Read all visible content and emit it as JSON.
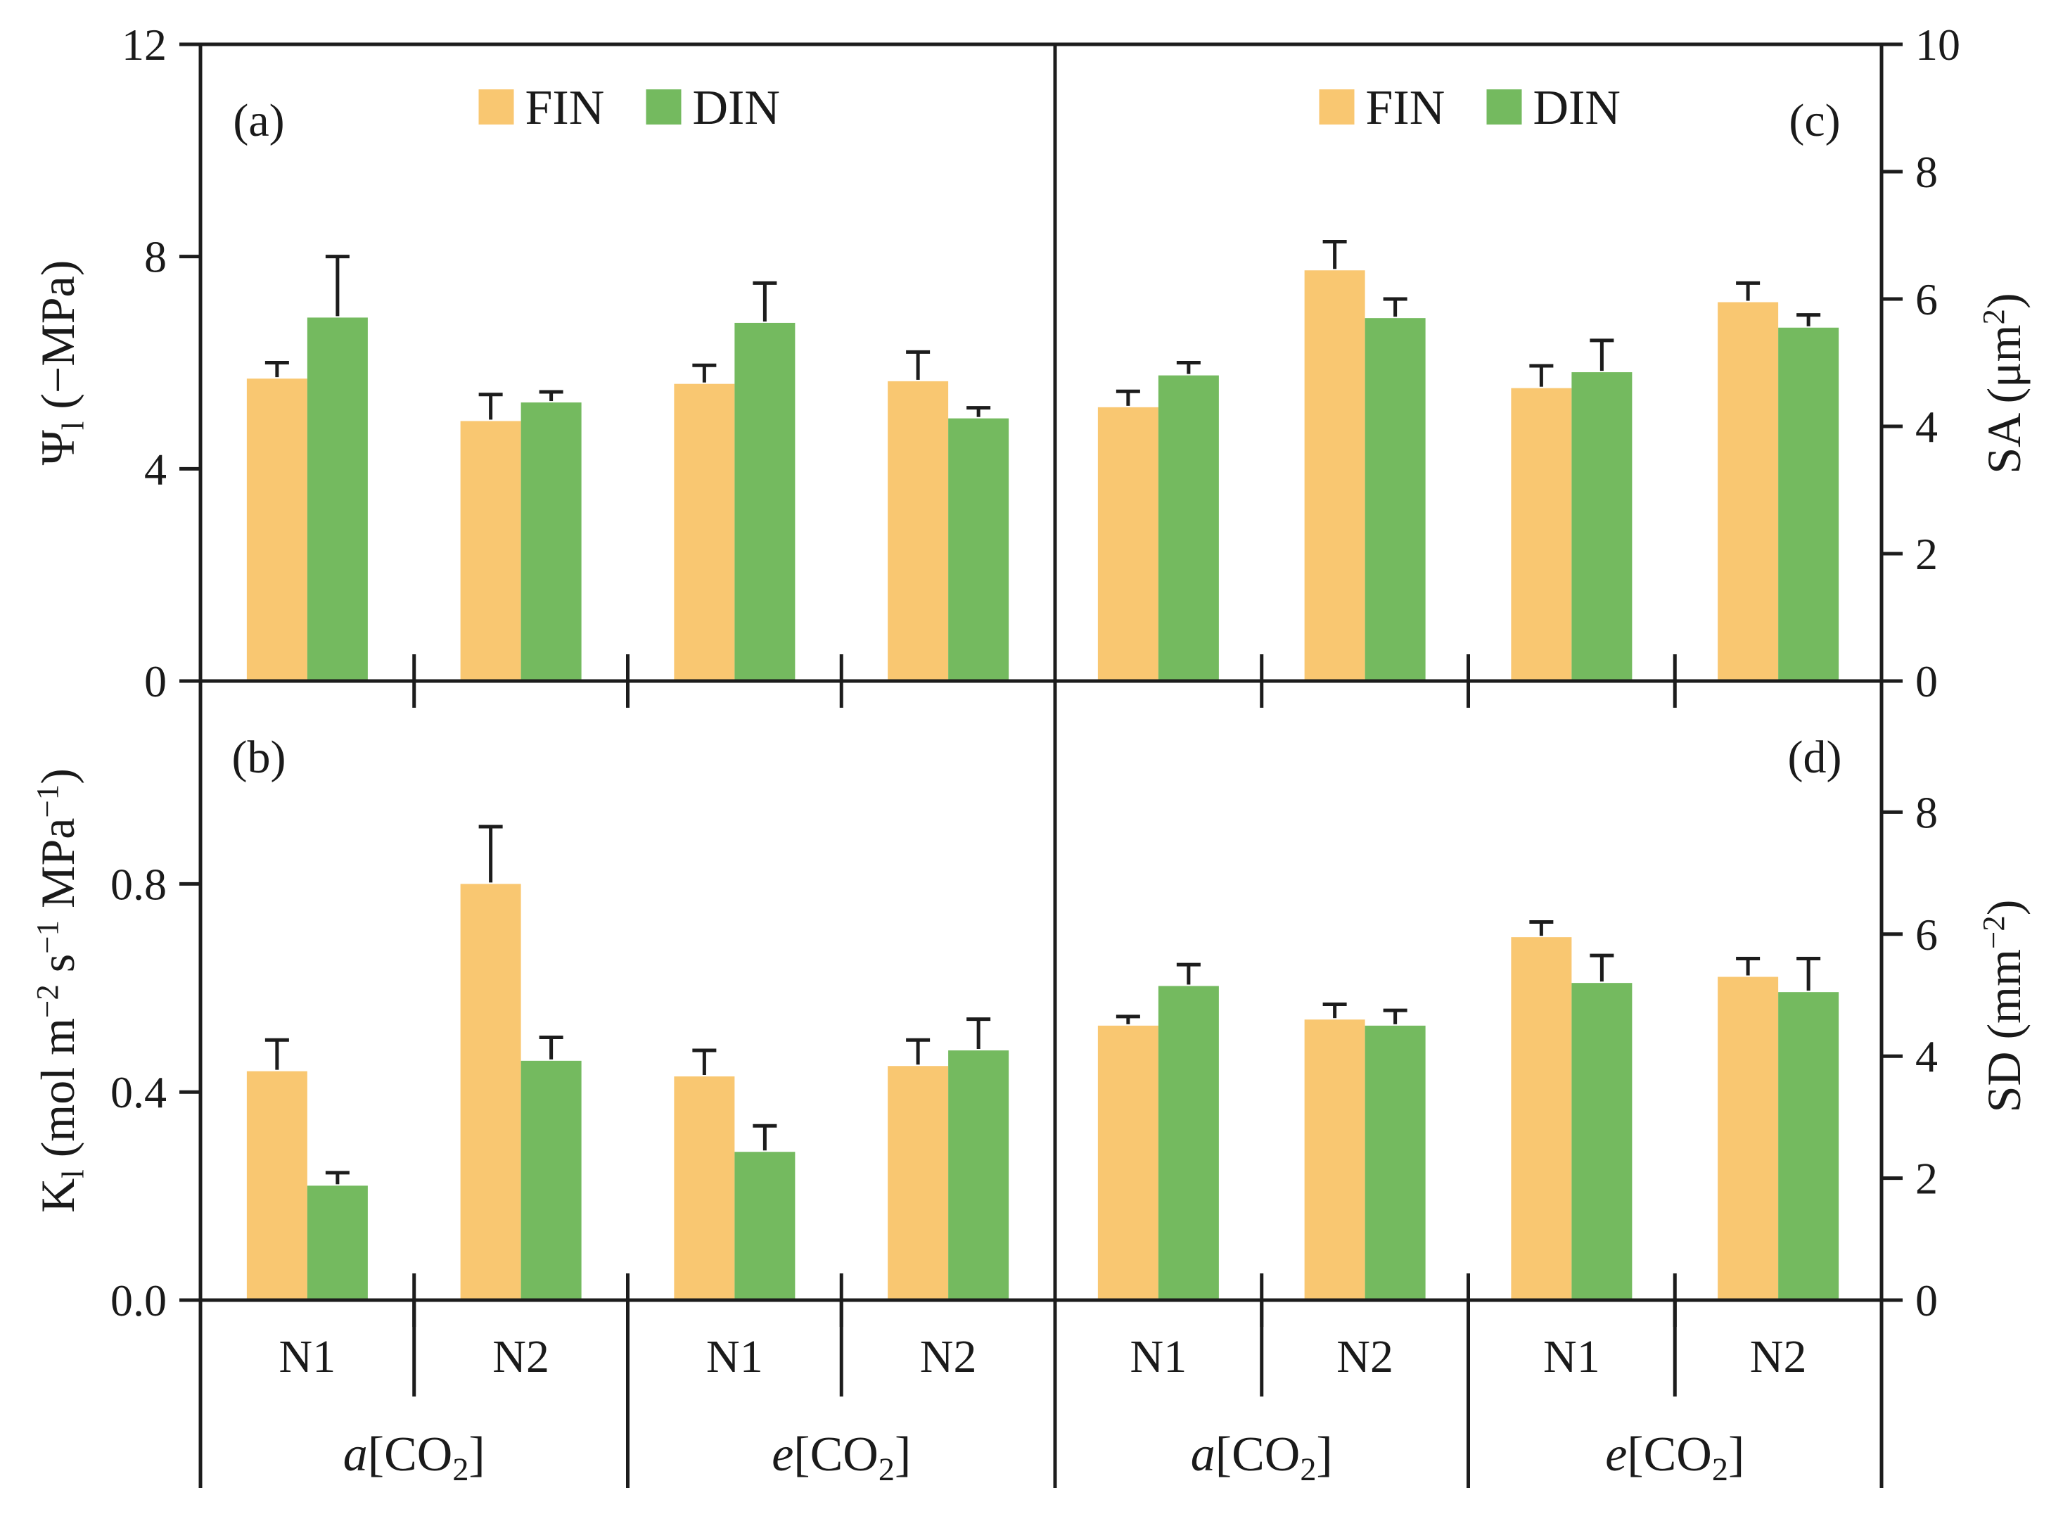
{
  "figure": {
    "background": "#ffffff",
    "axis_color": "#1c1c1c",
    "error_bar_color": "#1c1c1c"
  },
  "legend": {
    "items": [
      {
        "label": "FIN",
        "color": "#F9C771"
      },
      {
        "label": "DIN",
        "color": "#74BA5F"
      }
    ]
  },
  "x_axis": {
    "group_labels": [
      "N1",
      "N2",
      "N1",
      "N2",
      "N1",
      "N2",
      "N1",
      "N2"
    ],
    "treatment_labels": [
      {
        "text": "a[CO2]",
        "parts": [
          {
            "t": "a",
            "italic": true
          },
          {
            "t": "[CO"
          },
          {
            "t": "2",
            "sub": true
          },
          {
            "t": "]"
          }
        ]
      },
      {
        "text": "e[CO2]",
        "parts": [
          {
            "t": "e",
            "italic": true
          },
          {
            "t": "[CO"
          },
          {
            "t": "2",
            "sub": true
          },
          {
            "t": "]"
          }
        ]
      },
      {
        "text": "a[CO2]",
        "parts": [
          {
            "t": "a",
            "italic": true
          },
          {
            "t": "[CO"
          },
          {
            "t": "2",
            "sub": true
          },
          {
            "t": "]"
          }
        ]
      },
      {
        "text": "e[CO2]",
        "parts": [
          {
            "t": "e",
            "italic": true
          },
          {
            "t": "[CO"
          },
          {
            "t": "2",
            "sub": true
          },
          {
            "t": "]"
          }
        ]
      }
    ]
  },
  "chart_data": [
    {
      "id": "a",
      "type": "bar",
      "panel_label": "(a)",
      "panel_label_corner": "left",
      "show_legend": true,
      "axis_side": "left",
      "ylabel_text": "Ψl (−MPa)",
      "ylabel_parts": [
        {
          "t": "Ψ"
        },
        {
          "t": "l",
          "sub": true
        },
        {
          "t": " (−MPa)"
        }
      ],
      "ylim": [
        0,
        12
      ],
      "yticks": [
        {
          "v": 0,
          "label": "0"
        },
        {
          "v": 4,
          "label": "4"
        },
        {
          "v": 8,
          "label": "8"
        },
        {
          "v": 12,
          "label": "12"
        }
      ],
      "categories": [
        "a[CO2] N1",
        "a[CO2] N2",
        "e[CO2] N1",
        "e[CO2] N2"
      ],
      "series": [
        {
          "name": "FIN",
          "values": [
            5.7,
            4.9,
            5.6,
            5.65
          ],
          "errors": [
            0.3,
            0.5,
            0.35,
            0.55
          ]
        },
        {
          "name": "DIN",
          "values": [
            6.85,
            5.25,
            6.75,
            4.95
          ],
          "errors": [
            1.15,
            0.2,
            0.75,
            0.2
          ]
        }
      ]
    },
    {
      "id": "b",
      "type": "bar",
      "panel_label": "(b)",
      "panel_label_corner": "left",
      "show_legend": false,
      "axis_side": "left",
      "ylabel_text": "Kl (mol m−2 s−1 MPa−1)",
      "ylabel_parts": [
        {
          "t": "K"
        },
        {
          "t": "l",
          "sub": true
        },
        {
          "t": " (mol m"
        },
        {
          "t": "−2",
          "sup": true
        },
        {
          "t": " s"
        },
        {
          "t": "−1",
          "sup": true
        },
        {
          "t": " MPa"
        },
        {
          "t": "−1",
          "sup": true
        },
        {
          "t": ")"
        }
      ],
      "ylim": [
        0,
        1.19
      ],
      "yticks": [
        {
          "v": 0,
          "label": "0.0"
        },
        {
          "v": 0.4,
          "label": "0.4"
        },
        {
          "v": 0.8,
          "label": "0.8"
        }
      ],
      "categories": [
        "a[CO2] N1",
        "a[CO2] N2",
        "e[CO2] N1",
        "e[CO2] N2"
      ],
      "series": [
        {
          "name": "FIN",
          "values": [
            0.44,
            0.8,
            0.43,
            0.45
          ],
          "errors": [
            0.06,
            0.11,
            0.05,
            0.05
          ]
        },
        {
          "name": "DIN",
          "values": [
            0.22,
            0.46,
            0.285,
            0.48
          ],
          "errors": [
            0.025,
            0.045,
            0.05,
            0.06
          ]
        }
      ]
    },
    {
      "id": "c",
      "type": "bar",
      "panel_label": "(c)",
      "panel_label_corner": "right",
      "show_legend": true,
      "axis_side": "right",
      "ylabel_text": "SA (μm2)",
      "ylabel_parts": [
        {
          "t": "SA (μm"
        },
        {
          "t": "2",
          "sup": true
        },
        {
          "t": ")"
        }
      ],
      "ylim": [
        0,
        10
      ],
      "yticks": [
        {
          "v": 0,
          "label": "0"
        },
        {
          "v": 2,
          "label": "2"
        },
        {
          "v": 4,
          "label": "4"
        },
        {
          "v": 6,
          "label": "6"
        },
        {
          "v": 8,
          "label": "8"
        },
        {
          "v": 10,
          "label": "10"
        }
      ],
      "categories": [
        "a[CO2] N1",
        "a[CO2] N2",
        "e[CO2] N1",
        "e[CO2] N2"
      ],
      "series": [
        {
          "name": "FIN",
          "values": [
            4.3,
            6.45,
            4.6,
            5.95
          ],
          "errors": [
            0.25,
            0.45,
            0.35,
            0.3
          ]
        },
        {
          "name": "DIN",
          "values": [
            4.8,
            5.7,
            4.85,
            5.55
          ],
          "errors": [
            0.2,
            0.3,
            0.5,
            0.2
          ]
        }
      ]
    },
    {
      "id": "d",
      "type": "bar",
      "panel_label": "(d)",
      "panel_label_corner": "right",
      "show_legend": false,
      "axis_side": "right",
      "ylabel_text": "SD (mm−2)",
      "ylabel_parts": [
        {
          "t": "SD (mm"
        },
        {
          "t": "−2",
          "sup": true
        },
        {
          "t": ")"
        }
      ],
      "ylim": [
        0,
        10.15
      ],
      "yticks": [
        {
          "v": 0,
          "label": "0"
        },
        {
          "v": 2,
          "label": "2"
        },
        {
          "v": 4,
          "label": "4"
        },
        {
          "v": 6,
          "label": "6"
        },
        {
          "v": 8,
          "label": "8"
        }
      ],
      "categories": [
        "a[CO2] N1",
        "a[CO2] N2",
        "e[CO2] N1",
        "e[CO2] N2"
      ],
      "series": [
        {
          "name": "FIN",
          "values": [
            4.5,
            4.6,
            5.95,
            5.3
          ],
          "errors": [
            0.15,
            0.25,
            0.25,
            0.3
          ]
        },
        {
          "name": "DIN",
          "values": [
            5.15,
            4.5,
            5.2,
            5.05
          ],
          "errors": [
            0.35,
            0.25,
            0.45,
            0.55
          ]
        }
      ]
    }
  ]
}
